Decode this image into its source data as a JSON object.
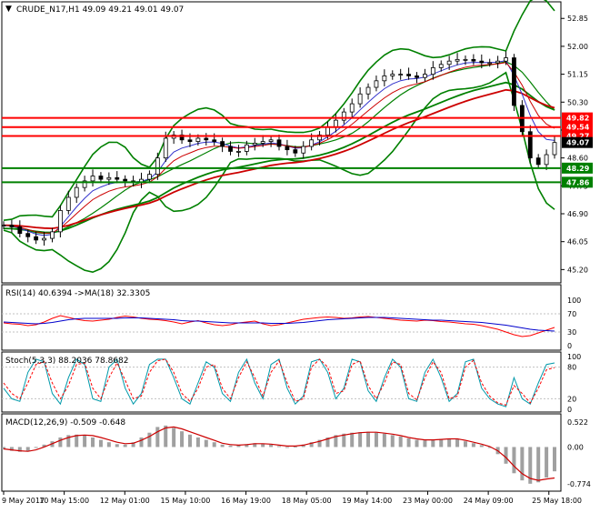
{
  "chart_data": {
    "type": "line",
    "title": "CRUDE_N17,H1  49.09 49.21 49.01 49.07",
    "symbol_arrow": "▼",
    "x_labels": [
      "9 May 2017",
      "10 May 15:00",
      "12 May 01:00",
      "15 May 10:00",
      "16 May 19:00",
      "18 May 05:00",
      "19 May 14:00",
      "23 May 00:00",
      "24 May 09:00",
      "25 May 18:00"
    ],
    "main": {
      "y_ticks": [
        "52.85",
        "52.00",
        "51.15",
        "50.30",
        "49.45",
        "48.60",
        "47.75",
        "46.90",
        "46.05",
        "45.20"
      ],
      "ylim": [
        44.85,
        53.3
      ],
      "price_series": [
        46.55,
        46.5,
        46.3,
        46.2,
        46.1,
        46.15,
        46.35,
        47.0,
        47.4,
        47.7,
        47.9,
        48.05,
        47.95,
        48.0,
        47.95,
        47.9,
        47.85,
        47.95,
        48.1,
        48.6,
        49.2,
        49.3,
        49.15,
        49.1,
        49.2,
        49.15,
        49.1,
        48.95,
        48.8,
        48.8,
        49.0,
        49.05,
        49.1,
        49.15,
        48.95,
        48.85,
        48.75,
        48.95,
        49.15,
        49.3,
        49.55,
        49.75,
        50.0,
        50.25,
        50.55,
        50.75,
        50.95,
        51.1,
        51.15,
        51.15,
        51.1,
        51.05,
        51.15,
        51.35,
        51.45,
        51.55,
        51.6,
        51.6,
        51.55,
        51.5,
        51.5,
        51.55,
        51.65,
        50.2,
        49.4,
        48.6,
        48.4,
        48.7,
        49.07
      ],
      "horizontal_levels": [
        {
          "value": 49.82,
          "label": "49.82",
          "color": "#ff0000"
        },
        {
          "value": 49.54,
          "label": "49.54",
          "color": "#ff0000"
        },
        {
          "value": 49.27,
          "label": "49.27",
          "color": "#ff0000"
        },
        {
          "value": 49.07,
          "label": "49.07",
          "color": "#000000"
        },
        {
          "value": 48.29,
          "label": "48.29",
          "color": "#008000"
        },
        {
          "value": 47.86,
          "label": "47.86",
          "color": "#008000"
        }
      ]
    },
    "rsi": {
      "label": "RSI(14) 40.6394 ->MA(18) 32.3305",
      "y_ticks": [
        "100",
        "70",
        "30",
        "0"
      ],
      "ylim": [
        0,
        100
      ],
      "levels": [
        70,
        30
      ],
      "rsi_series": [
        50,
        48,
        47,
        44,
        46,
        52,
        60,
        66,
        62,
        58,
        55,
        54,
        56,
        58,
        62,
        65,
        63,
        60,
        58,
        57,
        55,
        52,
        48,
        52,
        55,
        50,
        46,
        44,
        46,
        50,
        52,
        54,
        48,
        44,
        46,
        50,
        54,
        58,
        60,
        62,
        63,
        62,
        60,
        61,
        63,
        64,
        62,
        60,
        58,
        56,
        55,
        54,
        56,
        55,
        53,
        52,
        50,
        48,
        47,
        44,
        40,
        36,
        30,
        24,
        20,
        22,
        28,
        34,
        40
      ],
      "ma_series": [
        52,
        51,
        50,
        49,
        48,
        49,
        51,
        54,
        57,
        59,
        60,
        60,
        60,
        60,
        60,
        61,
        61,
        61,
        60,
        59,
        58,
        57,
        55,
        54,
        54,
        53,
        52,
        51,
        50,
        50,
        50,
        50,
        50,
        49,
        49,
        49,
        50,
        51,
        53,
        55,
        57,
        58,
        59,
        60,
        61,
        62,
        62,
        62,
        61,
        60,
        59,
        58,
        57,
        56,
        56,
        55,
        54,
        53,
        52,
        51,
        49,
        47,
        45,
        42,
        39,
        36,
        34,
        33,
        32
      ]
    },
    "stoch": {
      "label": "Stoch(5,3,3) 88.2036 78.8682",
      "y_ticks": [
        "100",
        "80",
        "20",
        "0"
      ],
      "ylim": [
        0,
        100
      ],
      "levels": [
        80,
        20
      ],
      "k_series": [
        40,
        20,
        15,
        70,
        95,
        90,
        30,
        10,
        60,
        95,
        85,
        20,
        15,
        80,
        95,
        40,
        10,
        30,
        85,
        95,
        95,
        60,
        20,
        10,
        50,
        90,
        80,
        30,
        15,
        70,
        95,
        50,
        20,
        85,
        95,
        40,
        10,
        25,
        90,
        95,
        70,
        20,
        40,
        95,
        90,
        35,
        15,
        60,
        95,
        80,
        20,
        15,
        70,
        95,
        60,
        15,
        30,
        90,
        95,
        40,
        20,
        10,
        5,
        60,
        20,
        10,
        50,
        85,
        88
      ],
      "d_series": [
        50,
        30,
        20,
        50,
        85,
        90,
        50,
        20,
        45,
        85,
        88,
        40,
        20,
        60,
        88,
        55,
        20,
        25,
        70,
        92,
        95,
        70,
        30,
        15,
        40,
        80,
        85,
        40,
        20,
        60,
        90,
        60,
        25,
        70,
        92,
        50,
        15,
        20,
        80,
        95,
        80,
        30,
        35,
        85,
        92,
        45,
        20,
        50,
        90,
        85,
        30,
        18,
        60,
        90,
        70,
        20,
        25,
        80,
        93,
        50,
        25,
        12,
        8,
        45,
        30,
        12,
        40,
        75,
        79
      ]
    },
    "macd": {
      "label": "MACD(12,26,9) -0.509 -0.648",
      "y_ticks": [
        "0.522",
        "0.00",
        "-0.774"
      ],
      "ylim": [
        -0.85,
        0.6
      ],
      "histogram": [
        -0.05,
        -0.08,
        -0.1,
        -0.08,
        -0.02,
        0.05,
        0.12,
        0.2,
        0.25,
        0.26,
        0.24,
        0.2,
        0.15,
        0.1,
        0.06,
        0.05,
        0.1,
        0.2,
        0.3,
        0.42,
        0.45,
        0.4,
        0.33,
        0.26,
        0.2,
        0.15,
        0.1,
        0.05,
        0.03,
        0.04,
        0.06,
        0.08,
        0.07,
        0.05,
        0.02,
        0.0,
        0.01,
        0.05,
        0.1,
        0.15,
        0.2,
        0.25,
        0.28,
        0.3,
        0.31,
        0.32,
        0.3,
        0.28,
        0.25,
        0.22,
        0.18,
        0.15,
        0.14,
        0.15,
        0.17,
        0.18,
        0.16,
        0.12,
        0.08,
        0.04,
        -0.02,
        -0.15,
        -0.35,
        -0.55,
        -0.7,
        -0.77,
        -0.74,
        -0.64,
        -0.51
      ],
      "signal": [
        -0.04,
        -0.06,
        -0.08,
        -0.09,
        -0.06,
        0.0,
        0.07,
        0.14,
        0.2,
        0.24,
        0.25,
        0.24,
        0.2,
        0.15,
        0.1,
        0.07,
        0.08,
        0.14,
        0.22,
        0.32,
        0.4,
        0.42,
        0.38,
        0.32,
        0.26,
        0.2,
        0.14,
        0.08,
        0.05,
        0.04,
        0.05,
        0.07,
        0.07,
        0.06,
        0.04,
        0.02,
        0.02,
        0.04,
        0.08,
        0.12,
        0.17,
        0.22,
        0.25,
        0.28,
        0.3,
        0.31,
        0.31,
        0.29,
        0.27,
        0.24,
        0.2,
        0.17,
        0.15,
        0.15,
        0.16,
        0.17,
        0.17,
        0.14,
        0.1,
        0.06,
        0.01,
        -0.08,
        -0.22,
        -0.4,
        -0.56,
        -0.66,
        -0.7,
        -0.67,
        -0.65
      ]
    }
  },
  "colors": {
    "price": "#000000",
    "bollinger": "#008000",
    "ma_slow_green": "#008000",
    "ma_slow_red": "#cc0000",
    "ma_fast_blue": "#3333cc",
    "ma_fast_red": "#cc0000",
    "rsi": "#ff0000",
    "rsi_ma": "#0000cc",
    "stoch_k": "#0099aa",
    "stoch_d": "#ff0000",
    "macd_hist": "#a0a0a0",
    "macd_signal": "#cc0000",
    "grid": "#c0c0c0"
  }
}
